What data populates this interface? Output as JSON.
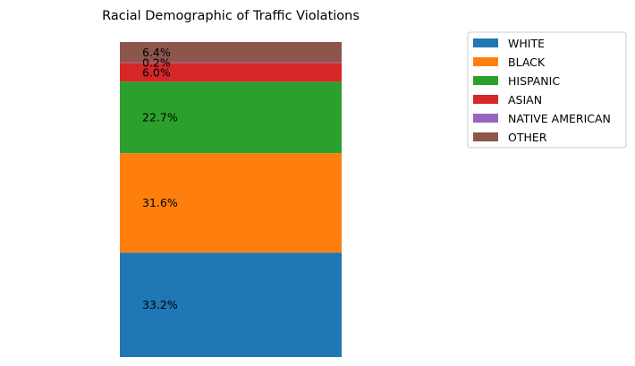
{
  "chart_data": {
    "type": "bar",
    "stacked": true,
    "title": "Racial Demographic of Traffic Violations",
    "xlabel": "",
    "ylabel": "",
    "axes_visible": false,
    "ylim": [
      0,
      100
    ],
    "legend_position": "top-right, outside plot",
    "series": [
      {
        "name": "WHITE",
        "value": 33.2,
        "label": "33.2%",
        "color": "#1f77b4"
      },
      {
        "name": "BLACK",
        "value": 31.6,
        "label": "31.6%",
        "color": "#ff7f0e"
      },
      {
        "name": "HISPANIC",
        "value": 22.7,
        "label": "22.7%",
        "color": "#2ca02c"
      },
      {
        "name": "ASIAN",
        "value": 6.0,
        "label": "6.0%",
        "color": "#d62728"
      },
      {
        "name": "NATIVE AMERICAN",
        "value": 0.2,
        "label": "0.2%",
        "color": "#9467bd"
      },
      {
        "name": "OTHER",
        "value": 6.4,
        "label": "6.4%",
        "color": "#8c564b"
      }
    ]
  }
}
